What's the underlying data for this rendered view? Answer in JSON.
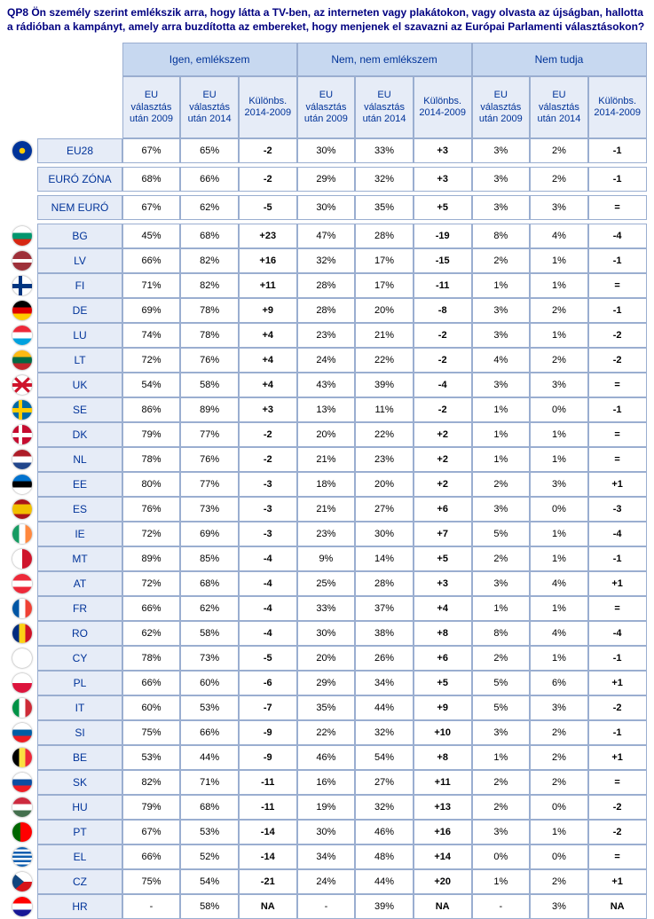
{
  "question": "QP8 Ön személy szerint emlékszik arra, hogy látta a TV-ben, az interneten vagy plakátokon, vagy olvasta az újságban, hallotta a rádióban a kampányt, amely arra buzdította az embereket, hogy menjenek el szavazni az Európai Parlamenti választásokon?",
  "colors": {
    "header_group_bg": "#c7d8f0",
    "header_sub_bg": "#e6ecf7",
    "row_label_bg": "#e6ecf7",
    "border": "#9aaed0",
    "header_text": "#003399",
    "question_text": "#000080"
  },
  "groups": [
    {
      "label": "Igen, emlékszem"
    },
    {
      "label": "Nem, nem emlékszem"
    },
    {
      "label": "Nem tudja"
    }
  ],
  "sub_headers": [
    "EU választás után 2009",
    "EU választás után 2014",
    "Különbs. 2014-2009"
  ],
  "sections": [
    {
      "rows": [
        {
          "flag": "f-eu",
          "label": "EU28",
          "c": [
            "67%",
            "65%",
            "-2",
            "30%",
            "33%",
            "+3",
            "3%",
            "2%",
            "-1"
          ]
        }
      ]
    },
    {
      "rows": [
        {
          "flag": "",
          "label": "EURÓ ZÓNA",
          "c": [
            "68%",
            "66%",
            "-2",
            "29%",
            "32%",
            "+3",
            "3%",
            "2%",
            "-1"
          ]
        }
      ]
    },
    {
      "rows": [
        {
          "flag": "",
          "label": "NEM EURÓ",
          "c": [
            "67%",
            "62%",
            "-5",
            "30%",
            "35%",
            "+5",
            "3%",
            "3%",
            "="
          ]
        }
      ]
    },
    {
      "rows": [
        {
          "flag": "f-bg",
          "label": "BG",
          "c": [
            "45%",
            "68%",
            "+23",
            "47%",
            "28%",
            "-19",
            "8%",
            "4%",
            "-4"
          ]
        },
        {
          "flag": "f-lv",
          "label": "LV",
          "c": [
            "66%",
            "82%",
            "+16",
            "32%",
            "17%",
            "-15",
            "2%",
            "1%",
            "-1"
          ]
        },
        {
          "flag": "f-fi",
          "label": "FI",
          "c": [
            "71%",
            "82%",
            "+11",
            "28%",
            "17%",
            "-11",
            "1%",
            "1%",
            "="
          ]
        },
        {
          "flag": "f-de",
          "label": "DE",
          "c": [
            "69%",
            "78%",
            "+9",
            "28%",
            "20%",
            "-8",
            "3%",
            "2%",
            "-1"
          ]
        },
        {
          "flag": "f-lu",
          "label": "LU",
          "c": [
            "74%",
            "78%",
            "+4",
            "23%",
            "21%",
            "-2",
            "3%",
            "1%",
            "-2"
          ]
        },
        {
          "flag": "f-lt",
          "label": "LT",
          "c": [
            "72%",
            "76%",
            "+4",
            "24%",
            "22%",
            "-2",
            "4%",
            "2%",
            "-2"
          ]
        },
        {
          "flag": "f-uk",
          "label": "UK",
          "c": [
            "54%",
            "58%",
            "+4",
            "43%",
            "39%",
            "-4",
            "3%",
            "3%",
            "="
          ]
        },
        {
          "flag": "f-se",
          "label": "SE",
          "c": [
            "86%",
            "89%",
            "+3",
            "13%",
            "11%",
            "-2",
            "1%",
            "0%",
            "-1"
          ]
        },
        {
          "flag": "f-dk",
          "label": "DK",
          "c": [
            "79%",
            "77%",
            "-2",
            "20%",
            "22%",
            "+2",
            "1%",
            "1%",
            "="
          ]
        },
        {
          "flag": "f-nl",
          "label": "NL",
          "c": [
            "78%",
            "76%",
            "-2",
            "21%",
            "23%",
            "+2",
            "1%",
            "1%",
            "="
          ]
        },
        {
          "flag": "f-ee",
          "label": "EE",
          "c": [
            "80%",
            "77%",
            "-3",
            "18%",
            "20%",
            "+2",
            "2%",
            "3%",
            "+1"
          ]
        },
        {
          "flag": "f-es",
          "label": "ES",
          "c": [
            "76%",
            "73%",
            "-3",
            "21%",
            "27%",
            "+6",
            "3%",
            "0%",
            "-3"
          ]
        },
        {
          "flag": "f-ie",
          "label": "IE",
          "c": [
            "72%",
            "69%",
            "-3",
            "23%",
            "30%",
            "+7",
            "5%",
            "1%",
            "-4"
          ]
        },
        {
          "flag": "f-mt",
          "label": "MT",
          "c": [
            "89%",
            "85%",
            "-4",
            "9%",
            "14%",
            "+5",
            "2%",
            "1%",
            "-1"
          ]
        },
        {
          "flag": "f-at",
          "label": "AT",
          "c": [
            "72%",
            "68%",
            "-4",
            "25%",
            "28%",
            "+3",
            "3%",
            "4%",
            "+1"
          ]
        },
        {
          "flag": "f-fr",
          "label": "FR",
          "c": [
            "66%",
            "62%",
            "-4",
            "33%",
            "37%",
            "+4",
            "1%",
            "1%",
            "="
          ]
        },
        {
          "flag": "f-ro",
          "label": "RO",
          "c": [
            "62%",
            "58%",
            "-4",
            "30%",
            "38%",
            "+8",
            "8%",
            "4%",
            "-4"
          ]
        },
        {
          "flag": "f-cy",
          "label": "CY",
          "c": [
            "78%",
            "73%",
            "-5",
            "20%",
            "26%",
            "+6",
            "2%",
            "1%",
            "-1"
          ]
        },
        {
          "flag": "f-pl",
          "label": "PL",
          "c": [
            "66%",
            "60%",
            "-6",
            "29%",
            "34%",
            "+5",
            "5%",
            "6%",
            "+1"
          ]
        },
        {
          "flag": "f-it",
          "label": "IT",
          "c": [
            "60%",
            "53%",
            "-7",
            "35%",
            "44%",
            "+9",
            "5%",
            "3%",
            "-2"
          ]
        },
        {
          "flag": "f-si",
          "label": "SI",
          "c": [
            "75%",
            "66%",
            "-9",
            "22%",
            "32%",
            "+10",
            "3%",
            "2%",
            "-1"
          ]
        },
        {
          "flag": "f-be",
          "label": "BE",
          "c": [
            "53%",
            "44%",
            "-9",
            "46%",
            "54%",
            "+8",
            "1%",
            "2%",
            "+1"
          ]
        },
        {
          "flag": "f-sk",
          "label": "SK",
          "c": [
            "82%",
            "71%",
            "-11",
            "16%",
            "27%",
            "+11",
            "2%",
            "2%",
            "="
          ]
        },
        {
          "flag": "f-hu",
          "label": "HU",
          "c": [
            "79%",
            "68%",
            "-11",
            "19%",
            "32%",
            "+13",
            "2%",
            "0%",
            "-2"
          ]
        },
        {
          "flag": "f-pt",
          "label": "PT",
          "c": [
            "67%",
            "53%",
            "-14",
            "30%",
            "46%",
            "+16",
            "3%",
            "1%",
            "-2"
          ]
        },
        {
          "flag": "f-el",
          "label": "EL",
          "c": [
            "66%",
            "52%",
            "-14",
            "34%",
            "48%",
            "+14",
            "0%",
            "0%",
            "="
          ]
        },
        {
          "flag": "f-cz",
          "label": "CZ",
          "c": [
            "75%",
            "54%",
            "-21",
            "24%",
            "44%",
            "+20",
            "1%",
            "2%",
            "+1"
          ]
        },
        {
          "flag": "f-hr",
          "label": "HR",
          "c": [
            "-",
            "58%",
            "NA",
            "-",
            "39%",
            "NA",
            "-",
            "3%",
            "NA"
          ]
        }
      ]
    }
  ]
}
